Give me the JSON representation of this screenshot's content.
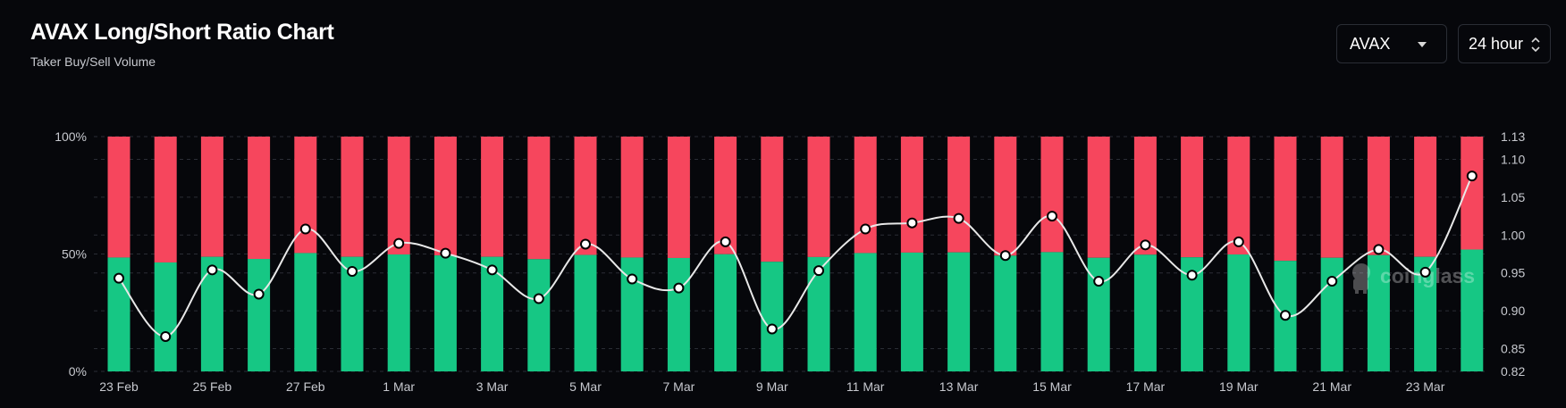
{
  "header": {
    "title": "AVAX Long/Short Ratio Chart",
    "subtitle": "Taker Buy/Sell Volume"
  },
  "controls": {
    "coin": "AVAX",
    "period": "24 hour"
  },
  "watermark": "coinglass",
  "colors": {
    "long": "#16c784",
    "short": "#f6465d",
    "line": "#e8e8e8",
    "grid": "#2a2d35"
  },
  "chart_data": {
    "type": "bar",
    "stacked": true,
    "categories": [
      "23 Feb",
      "24 Feb",
      "25 Feb",
      "26 Feb",
      "27 Feb",
      "28 Feb",
      "1 Mar",
      "2 Mar",
      "3 Mar",
      "4 Mar",
      "5 Mar",
      "6 Mar",
      "7 Mar",
      "8 Mar",
      "9 Mar",
      "10 Mar",
      "11 Mar",
      "12 Mar",
      "13 Mar",
      "14 Mar",
      "15 Mar",
      "16 Mar",
      "17 Mar",
      "18 Mar",
      "19 Mar",
      "20 Mar",
      "21 Mar",
      "22 Mar",
      "23 Mar",
      "24 Mar"
    ],
    "x_tick_labels": [
      "23 Feb",
      "25 Feb",
      "27 Feb",
      "1 Mar",
      "3 Mar",
      "5 Mar",
      "7 Mar",
      "9 Mar",
      "11 Mar",
      "13 Mar",
      "15 Mar",
      "17 Mar",
      "19 Mar",
      "21 Mar",
      "23 Mar"
    ],
    "series": [
      {
        "name": "",
        "values": [
          48.5,
          46.4,
          48.8,
          47.9,
          50.4,
          48.8,
          49.8,
          49.4,
          48.8,
          47.8,
          49.6,
          48.5,
          48.3,
          49.9,
          46.7,
          48.7,
          50.4,
          50.6,
          50.7,
          49.3,
          50.8,
          48.4,
          49.7,
          48.6,
          49.8,
          47.1,
          48.4,
          49.5,
          48.8,
          51.9
        ]
      },
      {
        "name": "",
        "values": [
          51.5,
          53.6,
          51.2,
          52.1,
          49.6,
          51.2,
          50.2,
          50.6,
          51.2,
          52.2,
          50.4,
          51.5,
          51.7,
          50.1,
          53.3,
          51.3,
          49.6,
          49.4,
          49.3,
          50.7,
          49.2,
          51.6,
          50.3,
          51.4,
          50.2,
          52.9,
          51.6,
          50.5,
          51.2,
          48.1
        ]
      }
    ],
    "ratio": [
      0.943,
      0.866,
      0.954,
      0.922,
      1.008,
      0.952,
      0.989,
      0.976,
      0.954,
      0.916,
      0.988,
      0.942,
      0.93,
      0.991,
      0.876,
      0.953,
      1.008,
      1.016,
      1.022,
      0.973,
      1.025,
      0.939,
      0.987,
      0.947,
      0.991,
      0.894,
      0.939,
      0.981,
      0.951,
      1.078
    ],
    "yleft_ticks": [
      "100%",
      "50%",
      "0%"
    ],
    "yleft_lim": [
      0,
      100
    ],
    "yright_ticks": [
      "1.13",
      "1.10",
      "1.05",
      "1.00",
      "0.95",
      "0.90",
      "0.85",
      "0.82"
    ],
    "yright_lim": [
      0.82,
      1.13
    ],
    "grid": true
  }
}
